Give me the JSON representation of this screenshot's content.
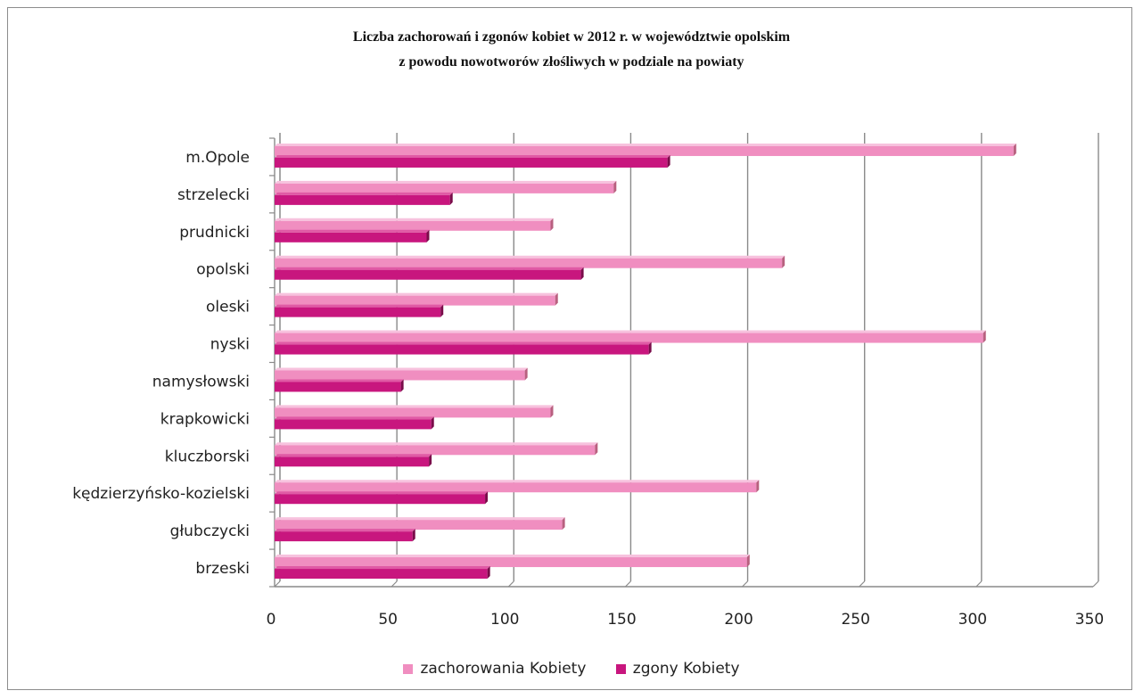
{
  "chart_data": {
    "type": "bar",
    "orientation": "horizontal",
    "title_line1": "Liczba zachorowań i zgonów kobiet w 2012 r. w  województwie opolskim",
    "title_line2": "z powodu nowotworów złośliwych w podziale na powiaty",
    "categories": [
      "m.Opole",
      "strzelecki",
      "prudnicki",
      "opolski",
      "oleski",
      "nyski",
      "namysłowski",
      "krapkowicki",
      "kluczborski",
      "kędzierzyńsko-kozielski",
      "głubczycki",
      "brzeski"
    ],
    "series": [
      {
        "name": "zachorowania Kobiety",
        "color": "#f08ec0",
        "values": [
          316,
          145,
          118,
          217,
          120,
          303,
          107,
          118,
          137,
          206,
          123,
          202
        ]
      },
      {
        "name": "zgony Kobiety",
        "color": "#c8167e",
        "values": [
          168,
          75,
          65,
          131,
          71,
          160,
          54,
          67,
          66,
          90,
          59,
          91
        ]
      }
    ],
    "xlim": [
      0,
      350
    ],
    "xticks": [
      0,
      50,
      100,
      150,
      200,
      250,
      300,
      350
    ],
    "grid": true,
    "legend_position": "bottom"
  }
}
